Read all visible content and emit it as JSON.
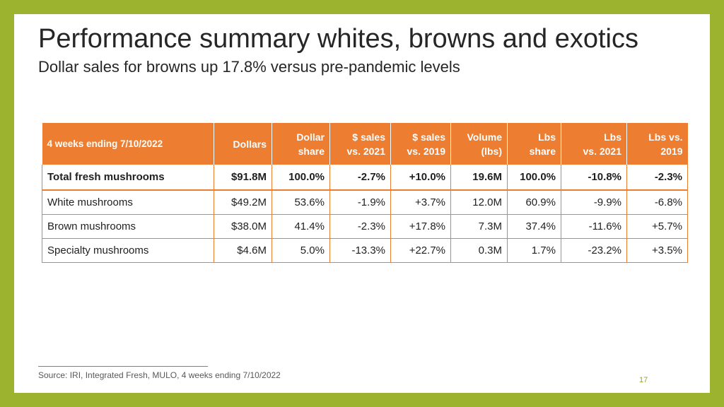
{
  "slide": {
    "title": "Performance summary whites, browns and exotics",
    "subtitle": "Dollar sales for browns up 17.8% versus pre-pandemic levels",
    "page_number": "17"
  },
  "table": {
    "headers": [
      [
        "4 weeks ending 7/10/2022"
      ],
      [
        "Dollars"
      ],
      [
        "Dollar",
        "share"
      ],
      [
        "$ sales",
        "vs. 2021"
      ],
      [
        "$ sales",
        "vs. 2019"
      ],
      [
        "Volume",
        "(lbs)"
      ],
      [
        "Lbs",
        "share"
      ],
      [
        "Lbs",
        "vs. 2021"
      ],
      [
        "Lbs vs.",
        "2019"
      ]
    ],
    "rows": [
      [
        "Total fresh mushrooms",
        "$91.8M",
        "100.0%",
        "-2.7%",
        "+10.0%",
        "19.6M",
        "100.0%",
        "-10.8%",
        "-2.3%"
      ],
      [
        "White mushrooms",
        "$49.2M",
        "53.6%",
        "-1.9%",
        "+3.7%",
        "12.0M",
        "60.9%",
        "-9.9%",
        "-6.8%"
      ],
      [
        "Brown mushrooms",
        "$38.0M",
        "41.4%",
        "-2.3%",
        "+17.8%",
        "7.3M",
        "37.4%",
        "-11.6%",
        "+5.7%"
      ],
      [
        "Specialty mushrooms",
        "$4.6M",
        "5.0%",
        "-13.3%",
        "+22.7%",
        "0.3M",
        "1.7%",
        "-23.2%",
        "+3.5%"
      ]
    ]
  },
  "footer": {
    "source": "Source: IRI, Integrated Fresh, MULO, 4 weeks ending 7/10/2022"
  },
  "colors": {
    "frame": "#9bb32e",
    "header_fill": "#ed7d31",
    "page_number": "#8bab2a"
  }
}
